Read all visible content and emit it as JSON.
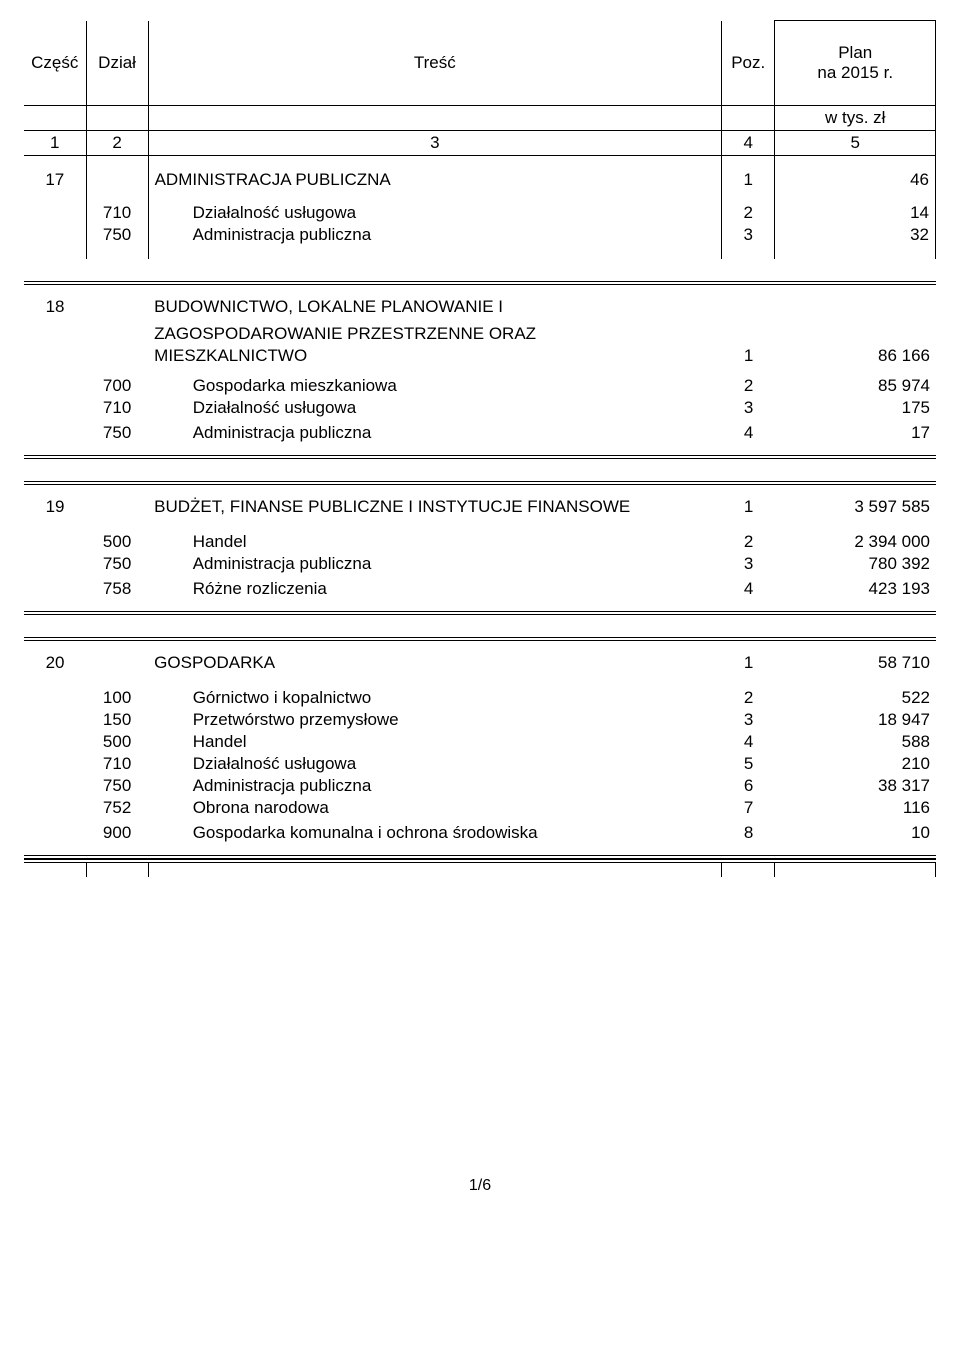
{
  "header": {
    "czesc": "Część",
    "dzial": "Dział",
    "tresc": "Treść",
    "poz": "Poz.",
    "plan_line1": "Plan",
    "plan_line2": "na 2015 r.",
    "unit": "w tys. zł",
    "colnums": [
      "1",
      "2",
      "3",
      "4",
      "5"
    ]
  },
  "top_group": {
    "czesc": "17",
    "title": "ADMINISTRACJA PUBLICZNA",
    "poz": "1",
    "plan": "46",
    "rows": [
      {
        "dzial": "710",
        "tresc": "Działalność usługowa",
        "poz": "2",
        "plan": "14"
      },
      {
        "dzial": "750",
        "tresc": "Administracja publiczna",
        "poz": "3",
        "plan": "32"
      }
    ]
  },
  "sections": [
    {
      "czesc": "18",
      "title_lines": [
        "BUDOWNICTWO, LOKALNE PLANOWANIE I",
        "ZAGOSPODAROWANIE PRZESTRZENNE ORAZ",
        "MIESZKALNICTWO"
      ],
      "poz": "1",
      "plan": "86 166",
      "rows": [
        {
          "dzial": "700",
          "tresc": "Gospodarka mieszkaniowa",
          "poz": "2",
          "plan": "85 974"
        },
        {
          "dzial": "710",
          "tresc": "Działalność usługowa",
          "poz": "3",
          "plan": "175"
        },
        {
          "dzial": "750",
          "tresc": "Administracja publiczna",
          "poz": "4",
          "plan": "17"
        }
      ]
    },
    {
      "czesc": "19",
      "title_lines": [
        "BUDŻET, FINANSE PUBLICZNE I INSTYTUCJE FINANSOWE"
      ],
      "poz": "1",
      "plan": "3 597 585",
      "rows": [
        {
          "dzial": "500",
          "tresc": "Handel",
          "poz": "2",
          "plan": "2 394 000"
        },
        {
          "dzial": "750",
          "tresc": "Administracja publiczna",
          "poz": "3",
          "plan": "780 392"
        },
        {
          "dzial": "758",
          "tresc": "Różne rozliczenia",
          "poz": "4",
          "plan": "423 193"
        }
      ]
    },
    {
      "czesc": "20",
      "title_lines": [
        "GOSPODARKA"
      ],
      "poz": "1",
      "plan": "58 710",
      "rows": [
        {
          "dzial": "100",
          "tresc": "Górnictwo i kopalnictwo",
          "poz": "2",
          "plan": "522"
        },
        {
          "dzial": "150",
          "tresc": "Przetwórstwo przemysłowe",
          "poz": "3",
          "plan": "18 947"
        },
        {
          "dzial": "500",
          "tresc": "Handel",
          "poz": "4",
          "plan": "588"
        },
        {
          "dzial": "710",
          "tresc": "Działalność usługowa",
          "poz": "5",
          "plan": "210"
        },
        {
          "dzial": "750",
          "tresc": "Administracja publiczna",
          "poz": "6",
          "plan": "38 317"
        },
        {
          "dzial": "752",
          "tresc": "Obrona narodowa",
          "poz": "7",
          "plan": "116"
        },
        {
          "dzial": "900",
          "tresc": "Gospodarka komunalna i ochrona środowiska",
          "poz": "8",
          "plan": "10"
        }
      ]
    }
  ],
  "page_number": "1/6"
}
